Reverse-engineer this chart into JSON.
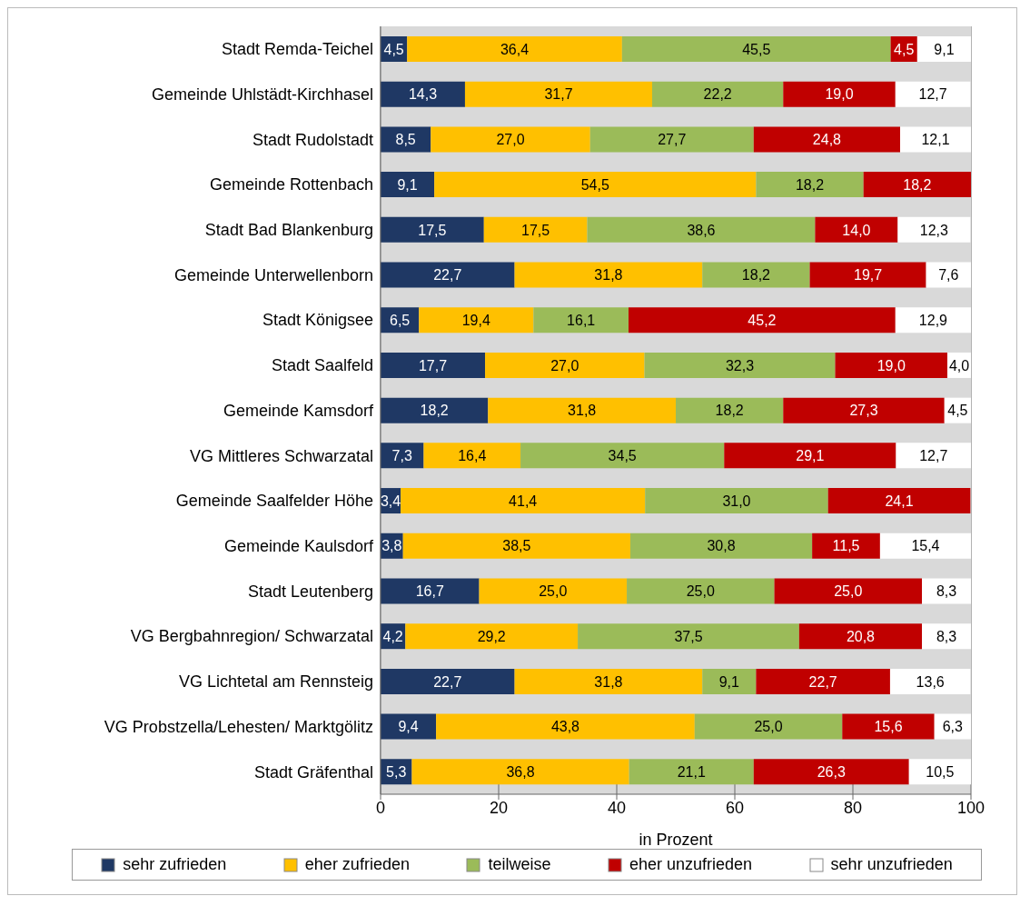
{
  "chart_data": {
    "type": "bar",
    "orientation": "horizontal",
    "stacked": true,
    "xlabel": "in Prozent",
    "xlim": [
      0,
      100
    ],
    "xticks": [
      0,
      20,
      40,
      60,
      80,
      100
    ],
    "grid": "x",
    "legend": "bottom",
    "categories": [
      "Stadt Remda-Teichel",
      "Gemeinde Uhlstädt-Kirchhasel",
      "Stadt Rudolstadt",
      "Gemeinde Rottenbach",
      "Stadt Bad Blankenburg",
      "Gemeinde Unterwellenborn",
      "Stadt Königsee",
      "Stadt Saalfeld",
      "Gemeinde Kamsdorf",
      "VG Mittleres Schwarzatal",
      "Gemeinde Saalfelder Höhe",
      "Gemeinde Kaulsdorf",
      "Stadt Leutenberg",
      "VG Bergbahnregion/ Schwarzatal",
      "VG Lichtetal am Rennsteig",
      "VG Probstzella/Lehesten/ Marktgölitz",
      "Stadt Gräfenthal"
    ],
    "series": [
      {
        "name": "sehr zufrieden",
        "color": "#1f3864",
        "values": [
          4.5,
          14.3,
          8.5,
          9.1,
          17.5,
          22.7,
          6.5,
          17.7,
          18.2,
          7.3,
          3.4,
          3.8,
          16.7,
          4.2,
          22.7,
          9.4,
          5.3
        ],
        "value_labels": [
          "4,5",
          "14,3",
          "8,5",
          "9,1",
          "17,5",
          "22,7",
          "6,5",
          "17,7",
          "18,2",
          "7,3",
          "3,4",
          "3,8",
          "16,7",
          "4,2",
          "22,7",
          "9,4",
          "5,3"
        ]
      },
      {
        "name": "eher zufrieden",
        "color": "#ffc000",
        "values": [
          36.4,
          31.7,
          27.0,
          54.5,
          17.5,
          31.8,
          19.4,
          27.0,
          31.8,
          16.4,
          41.4,
          38.5,
          25.0,
          29.2,
          31.8,
          43.8,
          36.8
        ],
        "value_labels": [
          "36,4",
          "31,7",
          "27,0",
          "54,5",
          "17,5",
          "31,8",
          "19,4",
          "27,0",
          "31,8",
          "16,4",
          "41,4",
          "38,5",
          "25,0",
          "29,2",
          "31,8",
          "43,8",
          "36,8"
        ]
      },
      {
        "name": "teilweise",
        "color": "#9bbb59",
        "values": [
          45.5,
          22.2,
          27.7,
          18.2,
          38.6,
          18.2,
          16.1,
          32.3,
          18.2,
          34.5,
          31.0,
          30.8,
          25.0,
          37.5,
          9.1,
          25.0,
          21.1
        ],
        "value_labels": [
          "45,5",
          "22,2",
          "27,7",
          "18,2",
          "38,6",
          "18,2",
          "16,1",
          "32,3",
          "18,2",
          "34,5",
          "31,0",
          "30,8",
          "25,0",
          "37,5",
          "9,1",
          "25,0",
          "21,1"
        ]
      },
      {
        "name": "eher unzufrieden",
        "color": "#c00000",
        "values": [
          4.5,
          19.0,
          24.8,
          18.2,
          14.0,
          19.7,
          45.2,
          19.0,
          27.3,
          29.1,
          24.1,
          11.5,
          25.0,
          20.8,
          22.7,
          15.6,
          26.3
        ],
        "value_labels": [
          "4,5",
          "19,0",
          "24,8",
          "18,2",
          "14,0",
          "19,7",
          "45,2",
          "19,0",
          "27,3",
          "29,1",
          "24,1",
          "11,5",
          "25,0",
          "20,8",
          "22,7",
          "15,6",
          "26,3"
        ]
      },
      {
        "name": "sehr unzufrieden",
        "color": "#ffffff",
        "values": [
          9.1,
          12.7,
          12.1,
          null,
          12.3,
          7.6,
          12.9,
          4.0,
          4.5,
          12.7,
          null,
          15.4,
          8.3,
          8.3,
          13.6,
          6.3,
          10.5
        ],
        "value_labels": [
          "9,1",
          "12,7",
          "12,1",
          null,
          "12,3",
          "7,6",
          "12,9",
          "4,0",
          "4,5",
          "12,7",
          null,
          "15,4",
          "8,3",
          "8,3",
          "13,6",
          "6,3",
          "10,5"
        ]
      }
    ]
  }
}
